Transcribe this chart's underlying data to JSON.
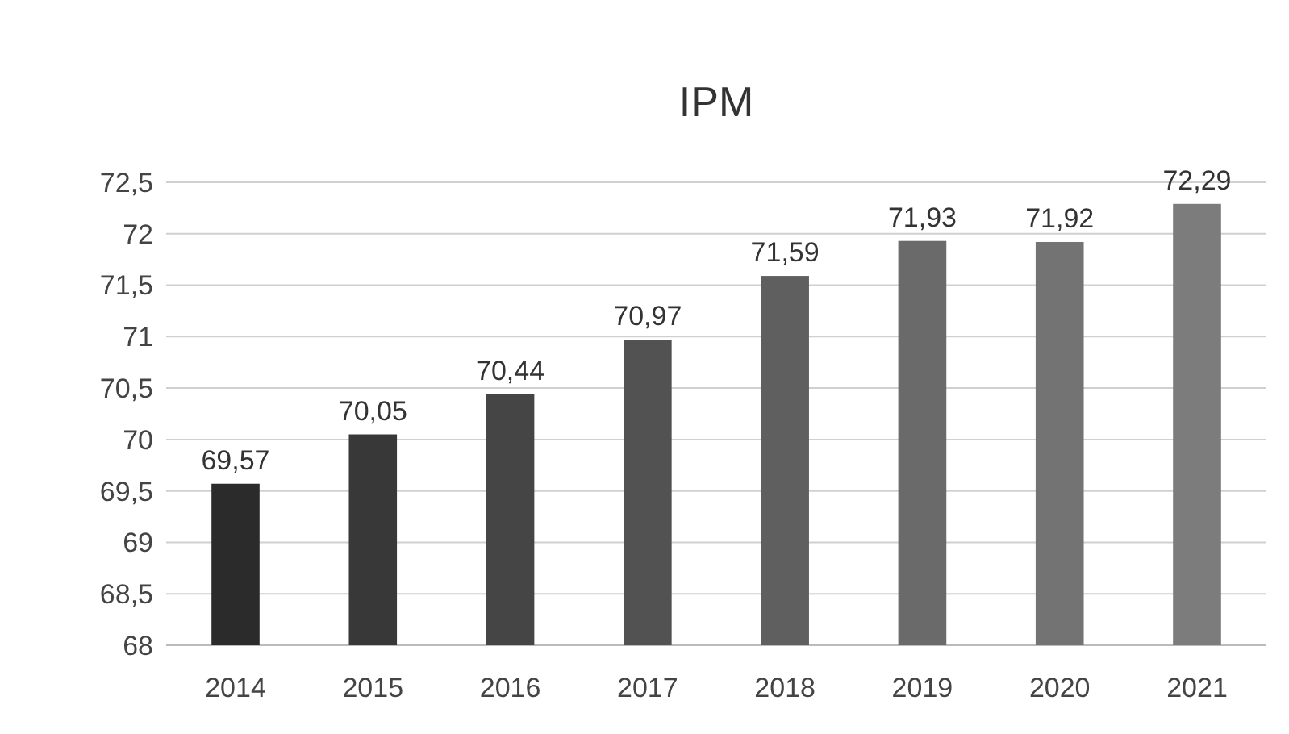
{
  "chart_data": {
    "type": "bar",
    "title": "IPM",
    "categories": [
      "2014",
      "2015",
      "2016",
      "2017",
      "2018",
      "2019",
      "2020",
      "2021"
    ],
    "values": [
      69.57,
      70.05,
      70.44,
      70.97,
      71.59,
      71.93,
      71.92,
      72.29
    ],
    "value_labels": [
      "69,57",
      "70,05",
      "70,44",
      "70,97",
      "71,59",
      "71,93",
      "71,92",
      "72,29"
    ],
    "colors": [
      "#2b2b2b",
      "#383838",
      "#454545",
      "#525252",
      "#5f5f5f",
      "#6a6a6a",
      "#737373",
      "#7c7c7c"
    ],
    "ylim": [
      68,
      72.5
    ],
    "yticks": [
      68,
      {
        "value": 68.5,
        "label": "68,5"
      },
      69,
      {
        "value": 69.5,
        "label": "69,5"
      },
      70,
      {
        "value": 70.5,
        "label": "70,5"
      },
      71,
      {
        "value": 71.5,
        "label": "71,5"
      },
      72,
      {
        "value": 72.5,
        "label": "72,5"
      }
    ],
    "grid": "y"
  }
}
